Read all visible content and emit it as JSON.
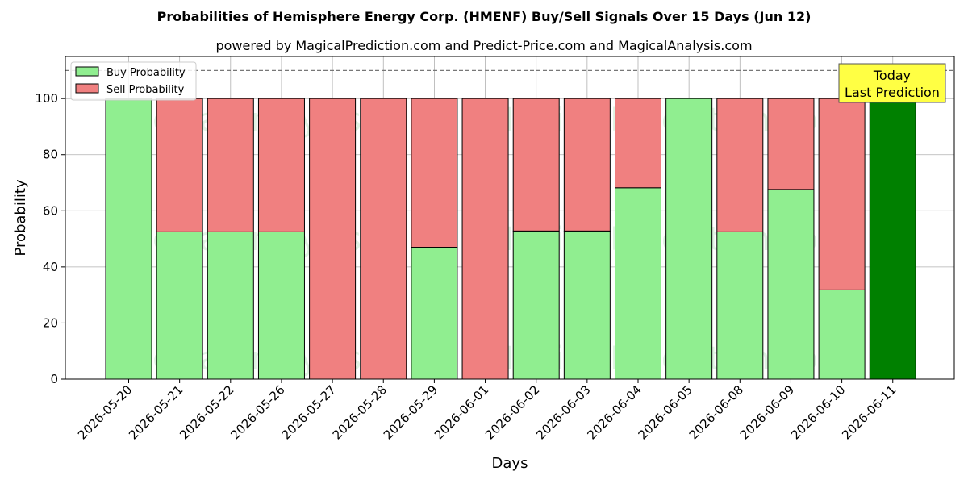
{
  "chart_data": {
    "type": "bar",
    "stacked": true,
    "title": "Probabilities of Hemisphere Energy Corp. (HMENF) Buy/Sell Signals Over 15 Days (Jun 12)",
    "subtitle": "powered by MagicalPrediction.com and Predict-Price.com and MagicalAnalysis.com",
    "xlabel": "Days",
    "ylabel": "Probability",
    "ylim": [
      0,
      115
    ],
    "yticks": [
      0,
      20,
      40,
      60,
      80,
      100
    ],
    "grid": true,
    "legend_position": "top-left",
    "reference_line": 110,
    "categories": [
      "2026-05-20",
      "2026-05-21",
      "2026-05-22",
      "2026-05-26",
      "2026-05-27",
      "2026-05-28",
      "2026-05-29",
      "2026-06-01",
      "2026-06-02",
      "2026-06-03",
      "2026-06-04",
      "2026-06-05",
      "2026-06-08",
      "2026-06-09",
      "2026-06-10",
      "2026-06-11"
    ],
    "series": [
      {
        "name": "Buy Probability",
        "color": "#90EE90",
        "values": [
          100,
          52.5,
          52.5,
          52.5,
          0,
          0,
          47,
          0,
          52.8,
          52.8,
          68.2,
          100,
          52.5,
          67.6,
          31.8,
          100
        ]
      },
      {
        "name": "Sell Probability",
        "color": "#F08080",
        "values": [
          0,
          47.5,
          47.5,
          47.5,
          100,
          100,
          53,
          100,
          47.2,
          47.2,
          31.8,
          0,
          47.5,
          32.4,
          68.2,
          0
        ]
      }
    ],
    "highlight": {
      "category": "2026-06-11",
      "color": "#008000"
    },
    "annotation": {
      "line1": "Today",
      "line2": "Last Prediction",
      "background": "#FFFF44"
    },
    "watermarks": [
      "MagicalAnalysis.com",
      "MagicalPrediction.com"
    ]
  }
}
